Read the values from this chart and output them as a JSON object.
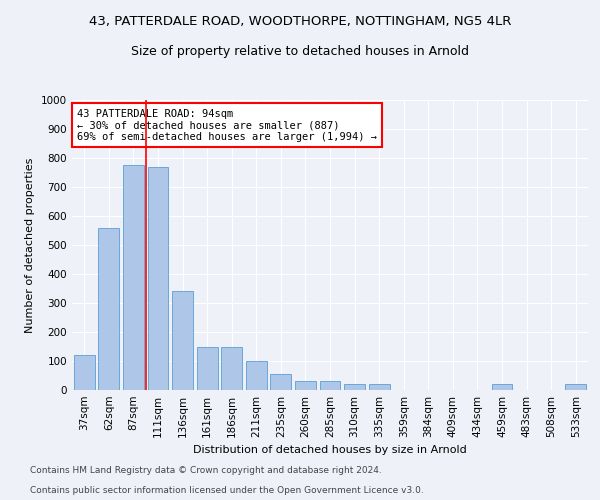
{
  "title": "43, PATTERDALE ROAD, WOODTHORPE, NOTTINGHAM, NG5 4LR",
  "subtitle": "Size of property relative to detached houses in Arnold",
  "xlabel": "Distribution of detached houses by size in Arnold",
  "ylabel": "Number of detached properties",
  "bar_labels": [
    "37sqm",
    "62sqm",
    "87sqm",
    "111sqm",
    "136sqm",
    "161sqm",
    "186sqm",
    "211sqm",
    "235sqm",
    "260sqm",
    "285sqm",
    "310sqm",
    "335sqm",
    "359sqm",
    "384sqm",
    "409sqm",
    "434sqm",
    "459sqm",
    "483sqm",
    "508sqm",
    "533sqm"
  ],
  "bar_values": [
    120,
    560,
    775,
    770,
    340,
    150,
    150,
    100,
    55,
    30,
    30,
    20,
    20,
    0,
    0,
    0,
    0,
    20,
    0,
    0,
    20
  ],
  "bar_color": "#aec6e8",
  "bar_edge_color": "#5a9fd4",
  "red_line_x": 2.5,
  "annotation_text": "43 PATTERDALE ROAD: 94sqm\n← 30% of detached houses are smaller (887)\n69% of semi-detached houses are larger (1,994) →",
  "annotation_box_color": "white",
  "annotation_box_edge_color": "red",
  "ylim": [
    0,
    1000
  ],
  "yticks": [
    0,
    100,
    200,
    300,
    400,
    500,
    600,
    700,
    800,
    900,
    1000
  ],
  "footnote1": "Contains HM Land Registry data © Crown copyright and database right 2024.",
  "footnote2": "Contains public sector information licensed under the Open Government Licence v3.0.",
  "background_color": "#eef2f8",
  "grid_color": "#ffffff",
  "title_fontsize": 9.5,
  "subtitle_fontsize": 9,
  "axis_label_fontsize": 8,
  "tick_fontsize": 7.5,
  "annotation_fontsize": 7.5,
  "footnote_fontsize": 6.5
}
